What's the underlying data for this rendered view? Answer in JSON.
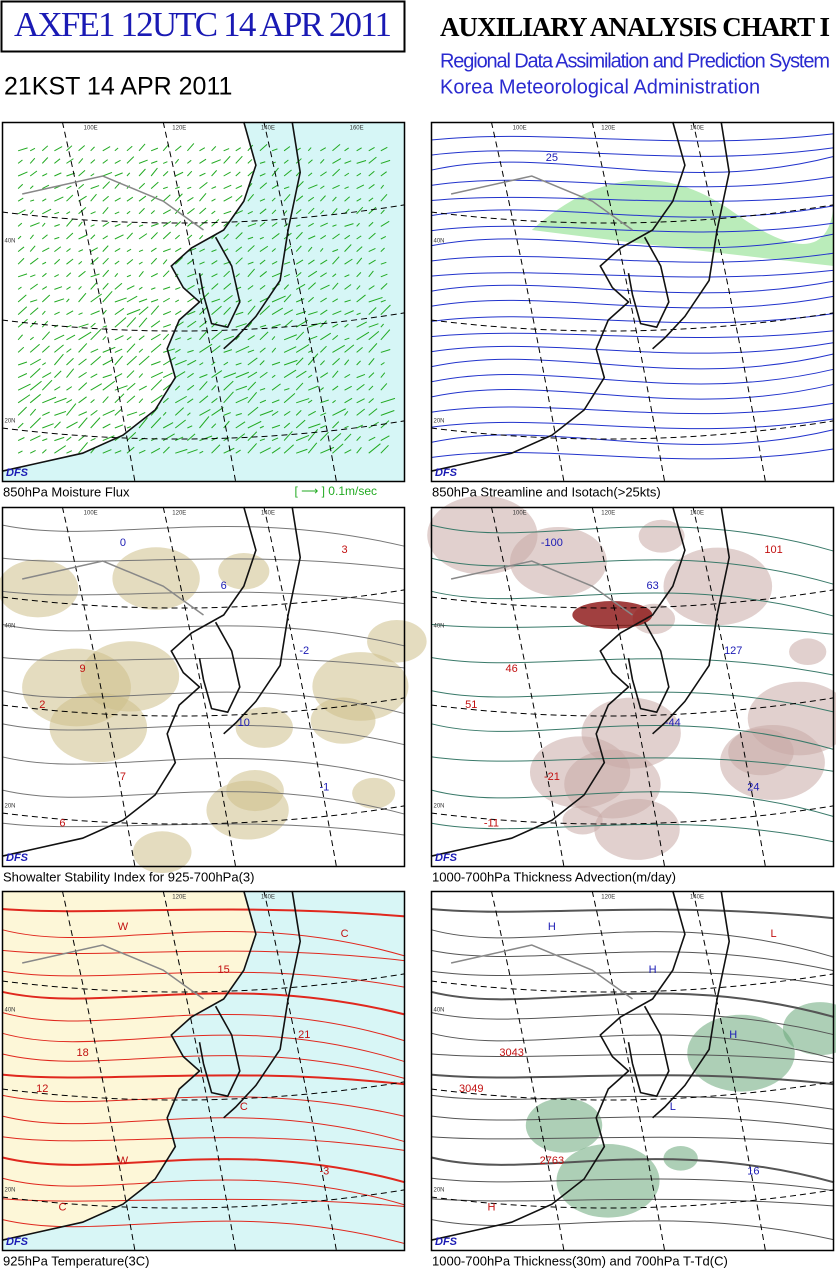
{
  "header": {
    "code_title": "AXFE1  12UTC 14 APR 2011",
    "local_time": "21KST 14 APR 2011",
    "chart_title": "AUXILIARY ANALYSIS CHART I",
    "system": "Regional Data Assimilation and Prediction System",
    "agency": "Korea Meteorological Administration"
  },
  "panels": [
    {
      "caption": "850hPa Moisture Flux",
      "logo": "DFS",
      "legend": "[  ⟶  ] 0.1m/sec",
      "grid_labels": [
        "100E",
        "120E",
        "140E",
        "160E",
        "40N",
        "20N"
      ],
      "map_labels": []
    },
    {
      "caption": "850hPa Streamline and Isotach(>25kts)",
      "logo": "DFS",
      "grid_labels": [
        "100E",
        "120E",
        "140E",
        "40N",
        "20N"
      ],
      "map_labels": [
        "25"
      ]
    },
    {
      "caption": "Showalter Stability Index for 925-700hPa(3)",
      "logo": "DFS",
      "grid_labels": [
        "100E",
        "120E",
        "140E",
        "40N",
        "20N"
      ],
      "map_labels": [
        "0",
        "3",
        "6",
        "9",
        "-2",
        "2",
        "10",
        "7",
        "-1",
        "6"
      ]
    },
    {
      "caption": "1000-700hPa Thickness Advection(m/day)",
      "logo": "DFS",
      "grid_labels": [
        "100E",
        "120E",
        "140E",
        "40N",
        "20N"
      ],
      "map_labels": [
        "-100",
        "101",
        "63",
        "46",
        "127",
        "51",
        "-44",
        "-21",
        "24",
        "-11"
      ]
    },
    {
      "caption": "925hPa Temperature(3C)",
      "logo": "DFS",
      "grid_labels": [
        "120E",
        "140E",
        "40N",
        "20N"
      ],
      "map_labels": [
        "W",
        "C",
        "15",
        "18",
        "21",
        "12",
        "C",
        "W",
        "-3",
        "C"
      ]
    },
    {
      "caption": "1000-700hPa Thickness(30m) and 700hPa T-Td(C)",
      "logo": "DFS",
      "grid_labels": [
        "120E",
        "140E",
        "40N",
        "20N"
      ],
      "map_labels": [
        "H",
        "L",
        "H",
        "3043",
        "H",
        "3049",
        "L",
        "2763",
        "16",
        "H"
      ]
    }
  ]
}
